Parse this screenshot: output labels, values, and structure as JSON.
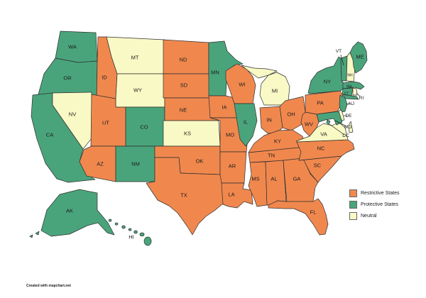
{
  "legend": {
    "items": [
      {
        "key": "restrictive",
        "label": "Restrictive States",
        "color": "#F0884E"
      },
      {
        "key": "protective",
        "label": "Protective States",
        "color": "#4AA47B"
      },
      {
        "key": "neutral",
        "label": "Neutral",
        "color": "#F9F9C5"
      }
    ]
  },
  "attribution": "Created with mapchart.net",
  "map": {
    "stroke_color": "#2e2e2e",
    "label_color": "#1b1b1b"
  },
  "states": [
    {
      "id": "WA",
      "label": "WA",
      "category": "protective"
    },
    {
      "id": "OR",
      "label": "OR",
      "category": "protective"
    },
    {
      "id": "CA",
      "label": "CA",
      "category": "protective"
    },
    {
      "id": "NV",
      "label": "NV",
      "category": "neutral"
    },
    {
      "id": "ID",
      "label": "ID",
      "category": "restrictive"
    },
    {
      "id": "MT",
      "label": "MT",
      "category": "neutral"
    },
    {
      "id": "WY",
      "label": "WY",
      "category": "neutral"
    },
    {
      "id": "UT",
      "label": "UT",
      "category": "restrictive"
    },
    {
      "id": "CO",
      "label": "CO",
      "category": "protective"
    },
    {
      "id": "AZ",
      "label": "AZ",
      "category": "restrictive"
    },
    {
      "id": "NM",
      "label": "NM",
      "category": "protective"
    },
    {
      "id": "ND",
      "label": "ND",
      "category": "restrictive"
    },
    {
      "id": "SD",
      "label": "SD",
      "category": "restrictive"
    },
    {
      "id": "NE",
      "label": "NE",
      "category": "restrictive"
    },
    {
      "id": "KS",
      "label": "KS",
      "category": "neutral"
    },
    {
      "id": "OK",
      "label": "OK",
      "category": "restrictive"
    },
    {
      "id": "TX",
      "label": "TX",
      "category": "restrictive"
    },
    {
      "id": "MN",
      "label": "MN",
      "category": "protective"
    },
    {
      "id": "IA",
      "label": "IA",
      "category": "restrictive"
    },
    {
      "id": "MO",
      "label": "MO",
      "category": "restrictive"
    },
    {
      "id": "AR",
      "label": "AR",
      "category": "restrictive"
    },
    {
      "id": "LA",
      "label": "LA",
      "category": "restrictive"
    },
    {
      "id": "WI",
      "label": "WI",
      "category": "restrictive"
    },
    {
      "id": "MI",
      "label": "MI",
      "category": "neutral"
    },
    {
      "id": "IL",
      "label": "IL",
      "category": "protective"
    },
    {
      "id": "IN",
      "label": "IN",
      "category": "restrictive"
    },
    {
      "id": "OH",
      "label": "OH",
      "category": "restrictive"
    },
    {
      "id": "KY",
      "label": "KY",
      "category": "restrictive"
    },
    {
      "id": "TN",
      "label": "TN",
      "category": "restrictive"
    },
    {
      "id": "MS",
      "label": "MS",
      "category": "restrictive"
    },
    {
      "id": "AL",
      "label": "AL",
      "category": "restrictive"
    },
    {
      "id": "GA",
      "label": "GA",
      "category": "restrictive"
    },
    {
      "id": "FL",
      "label": "FL",
      "category": "restrictive"
    },
    {
      "id": "SC",
      "label": "SC",
      "category": "restrictive"
    },
    {
      "id": "NC",
      "label": "NC",
      "category": "restrictive"
    },
    {
      "id": "VA",
      "label": "VA",
      "category": "neutral"
    },
    {
      "id": "WV",
      "label": "WV",
      "category": "restrictive"
    },
    {
      "id": "PA",
      "label": "PA",
      "category": "restrictive"
    },
    {
      "id": "NY",
      "label": "NY",
      "category": "protective"
    },
    {
      "id": "VT",
      "label": "VT",
      "category": "protective"
    },
    {
      "id": "NH",
      "label": "NH",
      "category": "neutral"
    },
    {
      "id": "ME",
      "label": "ME",
      "category": "protective"
    },
    {
      "id": "MA",
      "label": "MA",
      "category": "protective"
    },
    {
      "id": "CT",
      "label": "CT",
      "category": "protective"
    },
    {
      "id": "RI",
      "label": "RI",
      "category": "neutral"
    },
    {
      "id": "NJ",
      "label": "NJ",
      "category": "protective"
    },
    {
      "id": "DE",
      "label": "DE",
      "category": "neutral"
    },
    {
      "id": "MD",
      "label": "MD",
      "category": "protective"
    },
    {
      "id": "DC",
      "label": "DC",
      "category": "protective"
    },
    {
      "id": "AK",
      "label": "AK",
      "category": "protective"
    },
    {
      "id": "HI",
      "label": "HI",
      "category": "protective"
    }
  ]
}
